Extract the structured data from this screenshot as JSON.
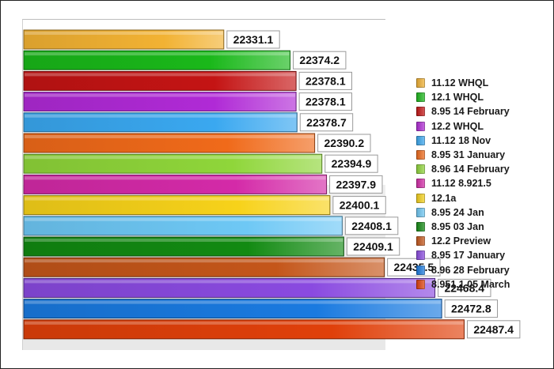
{
  "chart_data": {
    "type": "bar",
    "orientation": "horizontal",
    "title": "",
    "xlabel": "",
    "ylabel": "",
    "legend_position": "right",
    "grid": false,
    "series": [
      {
        "name": "11.12 WHQL",
        "value": 22331.1,
        "color": "#f2b233"
      },
      {
        "name": "12.1 WHQL",
        "value": 22374.2,
        "color": "#1ab81a"
      },
      {
        "name": "8.95 14 February",
        "value": 22378.1,
        "color": "#c41414"
      },
      {
        "name": "12.2 WHQL",
        "value": 22378.1,
        "color": "#b02ad6"
      },
      {
        "name": "11.12 18 Nov",
        "value": 22378.7,
        "color": "#3aa8f0"
      },
      {
        "name": "8.95 31 January",
        "value": 22390.2,
        "color": "#f06a1a"
      },
      {
        "name": "8.96 14 February",
        "value": 22394.9,
        "color": "#8fd63a"
      },
      {
        "name": "11.12 8.921.5",
        "value": 22397.9,
        "color": "#d42aa8"
      },
      {
        "name": "12.1a",
        "value": 22400.1,
        "color": "#f7d21a"
      },
      {
        "name": "8.95 24 Jan",
        "value": 22408.1,
        "color": "#6ec8f5"
      },
      {
        "name": "8.95 03 Jan",
        "value": 22409.1,
        "color": "#128a12"
      },
      {
        "name": "12.2 Preview",
        "value": 22435.5,
        "color": "#c4561a"
      },
      {
        "name": "8.95 17 January",
        "value": 22468.4,
        "color": "#8a4ae0"
      },
      {
        "name": "8.96 28 February",
        "value": 22472.8,
        "color": "#1a7ae0"
      },
      {
        "name": "8.951.1 05 March",
        "value": 22487.4,
        "color": "#e0400a"
      }
    ]
  }
}
